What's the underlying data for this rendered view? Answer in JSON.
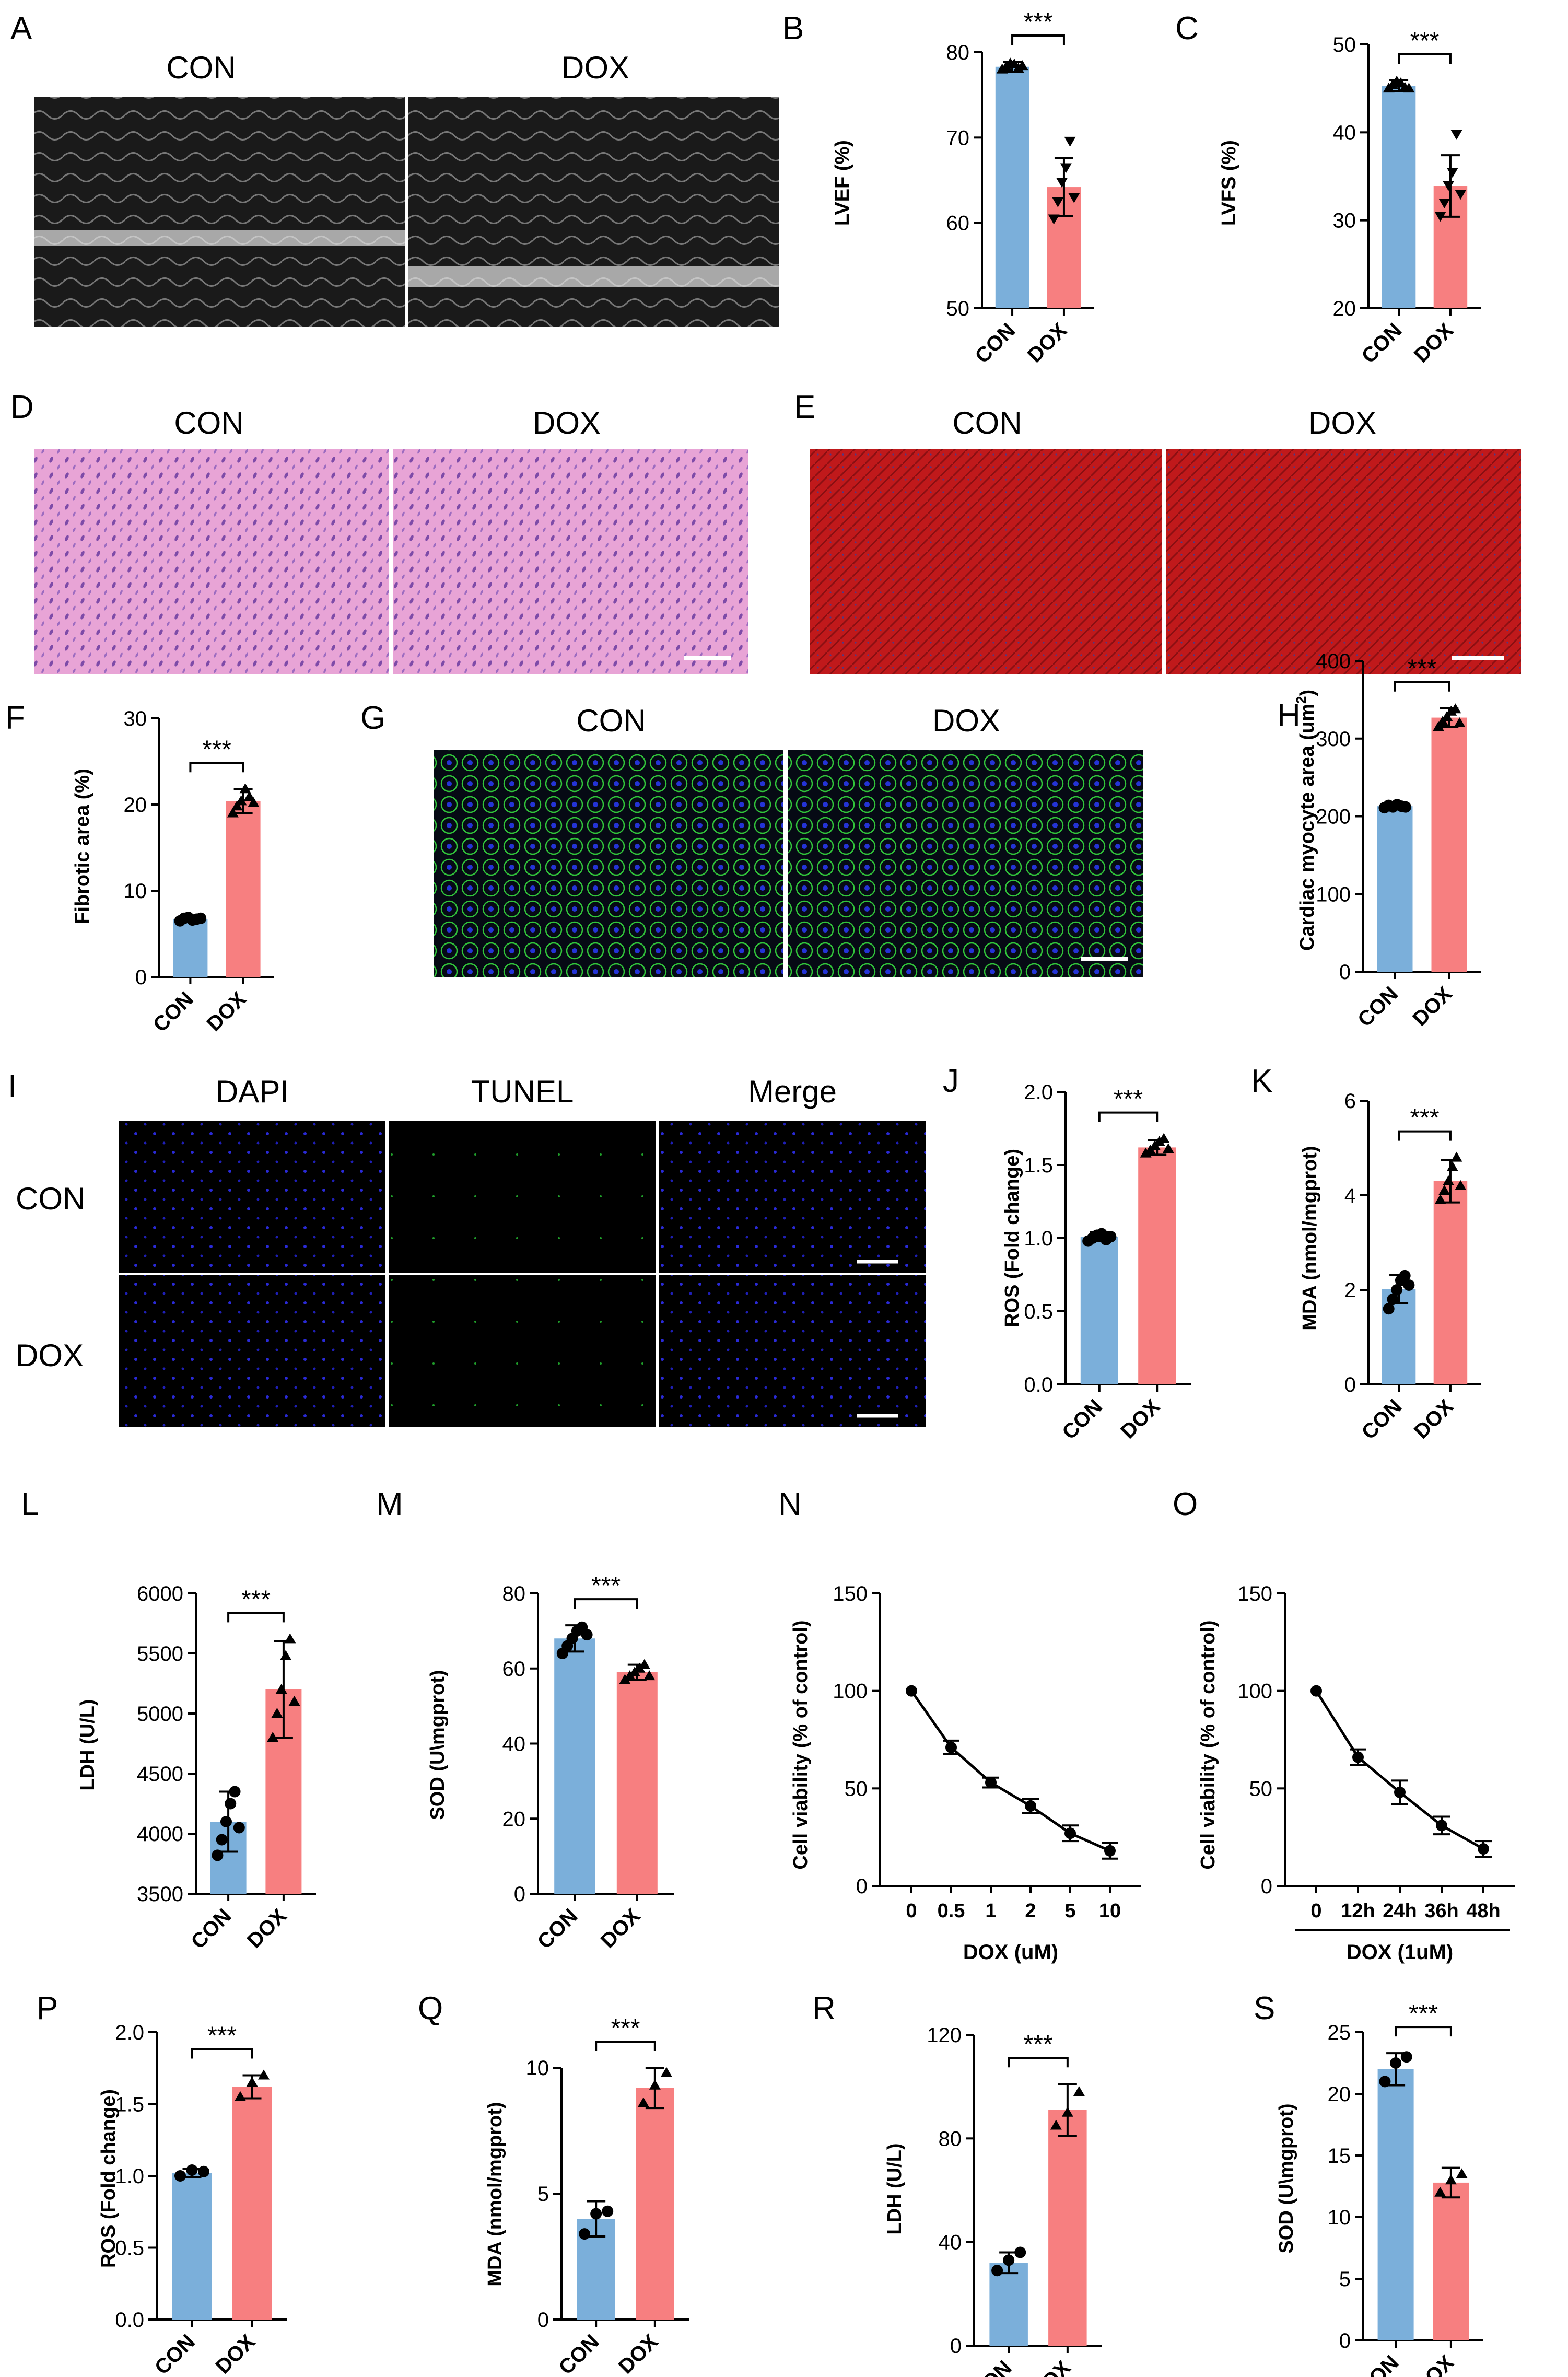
{
  "colors": {
    "con": "#7BAFDA",
    "dox": "#F77F80",
    "axis": "#000000"
  },
  "chart_data": [
    {
      "id": "B",
      "panel": "B",
      "type": "bar",
      "categories": [
        "CON",
        "DOX"
      ],
      "values": [
        78.3,
        64.2
      ],
      "errors": [
        0.6,
        3.4
      ],
      "points": [
        [
          78.0,
          78.3,
          78.7,
          78.6,
          78.1,
          78.4
        ],
        [
          60.5,
          62.5,
          64.8,
          66.5,
          69.6,
          63.0
        ]
      ],
      "ylabel": "LVEF (%)",
      "ylim": [
        50,
        80
      ],
      "yticks": [
        50,
        60,
        70,
        80
      ],
      "sig": "***"
    },
    {
      "id": "C",
      "panel": "C",
      "type": "bar",
      "categories": [
        "CON",
        "DOX"
      ],
      "values": [
        45.3,
        33.9
      ],
      "errors": [
        0.6,
        3.5
      ],
      "points": [
        [
          45.0,
          45.4,
          45.8,
          45.6,
          45.1,
          45.0
        ],
        [
          30.5,
          32.0,
          34.0,
          35.5,
          39.8,
          33.0
        ]
      ],
      "ylabel": "LVFS (%)",
      "ylim": [
        20,
        50
      ],
      "yticks": [
        20,
        30,
        40,
        50
      ],
      "sig": "***"
    },
    {
      "id": "F",
      "panel": "F",
      "type": "bar",
      "categories": [
        "CON",
        "DOX"
      ],
      "values": [
        6.7,
        20.4
      ],
      "errors": [
        0.2,
        1.4
      ],
      "points": [
        [
          6.5,
          6.8,
          6.9,
          6.6,
          6.7,
          6.8
        ],
        [
          19.0,
          19.8,
          20.4,
          21.8,
          20.9,
          20.2
        ]
      ],
      "ylabel": "Fibrotic area (%)",
      "ylim": [
        0,
        30
      ],
      "yticks": [
        0,
        10,
        20,
        30
      ],
      "sig": "***"
    },
    {
      "id": "H",
      "panel": "H",
      "type": "bar",
      "categories": [
        "CON",
        "DOX"
      ],
      "values": [
        213,
        327
      ],
      "errors": [
        3,
        12
      ],
      "points": [
        [
          211,
          214,
          212,
          215,
          213,
          212
        ],
        [
          315,
          322,
          328,
          335,
          338,
          320
        ]
      ],
      "ylabel": "Cardiac myocyte area (um",
      "ylabel_sup": "2",
      "ylabel_tail": ")",
      "ylim": [
        0,
        400
      ],
      "yticks": [
        0,
        100,
        200,
        300,
        400
      ],
      "sig": "***"
    },
    {
      "id": "J",
      "panel": "J",
      "type": "bar",
      "categories": [
        "CON",
        "DOX"
      ],
      "values": [
        1.01,
        1.62
      ],
      "errors": [
        0.03,
        0.05
      ],
      "points": [
        [
          0.98,
          1.0,
          1.02,
          1.03,
          0.99,
          1.01
        ],
        [
          1.58,
          1.6,
          1.63,
          1.66,
          1.68,
          1.61
        ]
      ],
      "ylabel": "ROS (Fold change)",
      "ylim": [
        0,
        2.0
      ],
      "yticks": [
        "0.0",
        "0.5",
        "1.0",
        "1.5",
        "2.0"
      ],
      "sig": "***"
    },
    {
      "id": "K",
      "panel": "K",
      "type": "bar",
      "categories": [
        "CON",
        "DOX"
      ],
      "values": [
        2.02,
        4.3
      ],
      "errors": [
        0.3,
        0.45
      ],
      "points": [
        [
          1.6,
          1.8,
          2.0,
          2.2,
          2.3,
          2.1
        ],
        [
          3.9,
          4.1,
          4.3,
          4.6,
          4.8,
          4.2
        ]
      ],
      "ylabel": "MDA (nmol/mgprot)",
      "ylim": [
        0,
        6
      ],
      "yticks": [
        0,
        2,
        4,
        6
      ],
      "sig": "***"
    },
    {
      "id": "L",
      "panel": "L",
      "type": "bar",
      "categories": [
        "CON",
        "DOX"
      ],
      "values": [
        4100,
        5200
      ],
      "errors": [
        250,
        400
      ],
      "points": [
        [
          3820,
          3950,
          4100,
          4250,
          4350,
          4050
        ],
        [
          4800,
          5000,
          5200,
          5480,
          5620,
          5100
        ]
      ],
      "ylabel": "LDH (U/L)",
      "ylim": [
        3500,
        6000
      ],
      "yticks": [
        3500,
        4000,
        4500,
        5000,
        5500,
        6000
      ],
      "sig": "***"
    },
    {
      "id": "M",
      "panel": "M",
      "type": "bar",
      "categories": [
        "CON",
        "DOX"
      ],
      "values": [
        68,
        59
      ],
      "errors": [
        3.5,
        2
      ],
      "points": [
        [
          64,
          66,
          68,
          70,
          71,
          69
        ],
        [
          57,
          58,
          59,
          60,
          61,
          58
        ]
      ],
      "ylabel": "SOD (U\\mgprot)",
      "ylim": [
        0,
        80
      ],
      "yticks": [
        0,
        20,
        40,
        60,
        80
      ],
      "sig": "***"
    },
    {
      "id": "N",
      "panel": "N",
      "type": "line",
      "categories": [
        "0",
        "0.5",
        "1",
        "2",
        "5",
        "10"
      ],
      "values": [
        100,
        71,
        53,
        41,
        27,
        18
      ],
      "errors": [
        0,
        3.5,
        2.5,
        3.5,
        4,
        4
      ],
      "ylabel": "Cell viability (% of control)",
      "xlabel": "DOX (uM)",
      "ylim": [
        0,
        150
      ],
      "yticks": [
        0,
        50,
        100,
        150
      ]
    },
    {
      "id": "O",
      "panel": "O",
      "type": "line",
      "categories": [
        "0",
        "12h",
        "24h",
        "36h",
        "48h"
      ],
      "values": [
        100,
        66,
        48,
        31,
        19
      ],
      "errors": [
        0,
        4,
        6,
        4.5,
        4
      ],
      "ylabel": "Cell viability (% of control)",
      "xlabel": "DOX (1uM)",
      "ylim": [
        0,
        150
      ],
      "yticks": [
        0,
        50,
        100,
        150
      ]
    },
    {
      "id": "P",
      "panel": "P",
      "type": "bar",
      "categories": [
        "CON",
        "DOX"
      ],
      "values": [
        1.02,
        1.62
      ],
      "errors": [
        0.03,
        0.08
      ],
      "points": [
        [
          1.0,
          1.04,
          1.03
        ],
        [
          1.55,
          1.65,
          1.7
        ]
      ],
      "ylabel": "ROS (Fold change)",
      "ylim": [
        0,
        2.0
      ],
      "yticks": [
        "0.0",
        "0.5",
        "1.0",
        "1.5",
        "2.0"
      ],
      "sig": "***"
    },
    {
      "id": "Q",
      "panel": "Q",
      "type": "bar",
      "categories": [
        "CON",
        "DOX"
      ],
      "values": [
        4.0,
        9.2
      ],
      "errors": [
        0.7,
        0.8
      ],
      "points": [
        [
          3.4,
          4.2,
          4.3
        ],
        [
          8.6,
          9.3,
          9.8
        ]
      ],
      "ylabel": "MDA (nmol/mgprot)",
      "ylim": [
        0,
        10
      ],
      "yticks": [
        0,
        5,
        10
      ],
      "sig": "***"
    },
    {
      "id": "R",
      "panel": "R",
      "type": "bar",
      "categories": [
        "CON",
        "DOX"
      ],
      "values": [
        32,
        91
      ],
      "errors": [
        4,
        10
      ],
      "points": [
        [
          29,
          33,
          36
        ],
        [
          85,
          90,
          98
        ]
      ],
      "ylabel": "LDH (U/L)",
      "ylim": [
        0,
        120
      ],
      "yticks": [
        0,
        40,
        80,
        120
      ],
      "sig": "***"
    },
    {
      "id": "S",
      "panel": "S",
      "type": "bar",
      "categories": [
        "CON",
        "DOX"
      ],
      "values": [
        22,
        12.8
      ],
      "errors": [
        1.3,
        1.2
      ],
      "points": [
        [
          21,
          22.5,
          23
        ],
        [
          12,
          13,
          13.5
        ]
      ],
      "ylabel": "SOD (U\\mgprot)",
      "ylim": [
        0,
        25
      ],
      "yticks": [
        0,
        5,
        10,
        15,
        20,
        25
      ],
      "sig": "***"
    }
  ],
  "image_panels": {
    "A": {
      "panel": "A",
      "labels": [
        "CON",
        "DOX"
      ]
    },
    "D": {
      "panel": "D",
      "labels": [
        "CON",
        "DOX"
      ]
    },
    "E": {
      "panel": "E",
      "labels": [
        "CON",
        "DOX"
      ]
    },
    "G": {
      "panel": "G",
      "labels": [
        "CON",
        "DOX"
      ]
    },
    "I": {
      "panel": "I",
      "cols": [
        "DAPI",
        "TUNEL",
        "Merge"
      ],
      "rows": [
        "CON",
        "DOX"
      ]
    }
  }
}
